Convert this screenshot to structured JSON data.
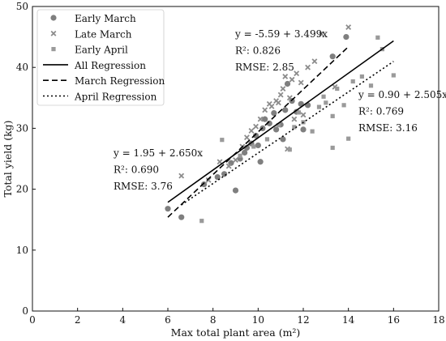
{
  "chart_data": {
    "type": "scatter",
    "xlabel": "Max total plant area (m²)",
    "ylabel": "Total yield (kg)",
    "xlim": [
      0,
      18
    ],
    "ylim": [
      0,
      50
    ],
    "xticks": [
      0,
      2,
      4,
      6,
      8,
      10,
      12,
      14,
      16,
      18
    ],
    "yticks": [
      0,
      10,
      20,
      30,
      40,
      50
    ],
    "grid": false,
    "legend_position": "top-left",
    "series": [
      {
        "name": "Early March",
        "marker": "circle",
        "color": "#7f7f7f",
        "points": [
          [
            6.0,
            16.8
          ],
          [
            6.6,
            15.4
          ],
          [
            7.6,
            20.8
          ],
          [
            8.2,
            22.0
          ],
          [
            8.5,
            22.5
          ],
          [
            8.8,
            24.3
          ],
          [
            9.0,
            19.8
          ],
          [
            9.2,
            25.0
          ],
          [
            9.4,
            26.0
          ],
          [
            9.7,
            27.5
          ],
          [
            9.9,
            28.8
          ],
          [
            10.0,
            27.2
          ],
          [
            10.2,
            30.0
          ],
          [
            10.3,
            31.5
          ],
          [
            10.5,
            30.8
          ],
          [
            10.7,
            32.5
          ],
          [
            10.8,
            29.8
          ],
          [
            11.0,
            30.6
          ],
          [
            11.2,
            33.0
          ],
          [
            11.3,
            37.3
          ],
          [
            11.5,
            34.5
          ],
          [
            11.7,
            32.7
          ],
          [
            11.9,
            34.0
          ],
          [
            12.0,
            29.8
          ],
          [
            12.2,
            33.8
          ],
          [
            11.1,
            28.2
          ],
          [
            9.5,
            26.8
          ],
          [
            10.1,
            24.5
          ],
          [
            13.3,
            41.8
          ],
          [
            13.9,
            45.0
          ]
        ]
      },
      {
        "name": "Late March",
        "marker": "x",
        "color": "#8c8c8c",
        "points": [
          [
            6.6,
            22.2
          ],
          [
            7.8,
            21.5
          ],
          [
            8.3,
            24.5
          ],
          [
            8.7,
            23.8
          ],
          [
            9.0,
            24.8
          ],
          [
            9.3,
            27.0
          ],
          [
            9.5,
            28.5
          ],
          [
            9.7,
            29.6
          ],
          [
            9.9,
            30.3
          ],
          [
            10.1,
            31.5
          ],
          [
            10.3,
            33.0
          ],
          [
            10.5,
            34.0
          ],
          [
            10.6,
            33.6
          ],
          [
            10.8,
            34.5
          ],
          [
            11.0,
            35.5
          ],
          [
            11.1,
            36.5
          ],
          [
            11.2,
            38.5
          ],
          [
            11.4,
            35.0
          ],
          [
            11.5,
            38.0
          ],
          [
            11.7,
            39.0
          ],
          [
            11.9,
            37.5
          ],
          [
            12.2,
            40.0
          ],
          [
            12.5,
            41.0
          ],
          [
            12.8,
            45.5
          ],
          [
            14.0,
            46.6
          ],
          [
            13.4,
            36.8
          ],
          [
            10.9,
            34.2
          ],
          [
            11.6,
            31.5
          ],
          [
            12.0,
            32.2
          ],
          [
            11.3,
            26.6
          ]
        ]
      },
      {
        "name": "Early April",
        "marker": "square",
        "color": "#9a9a9a",
        "points": [
          [
            7.5,
            14.8
          ],
          [
            8.4,
            28.1
          ],
          [
            9.2,
            25.5
          ],
          [
            9.8,
            27.0
          ],
          [
            10.4,
            28.2
          ],
          [
            10.9,
            30.5
          ],
          [
            11.4,
            26.5
          ],
          [
            11.6,
            30.2
          ],
          [
            12.0,
            31.0
          ],
          [
            12.4,
            29.5
          ],
          [
            12.7,
            33.5
          ],
          [
            13.0,
            34.2
          ],
          [
            13.3,
            32.0
          ],
          [
            13.5,
            36.5
          ],
          [
            13.8,
            33.8
          ],
          [
            14.0,
            28.3
          ],
          [
            14.2,
            37.7
          ],
          [
            14.6,
            38.5
          ],
          [
            15.0,
            37.0
          ],
          [
            15.3,
            44.9
          ],
          [
            15.5,
            43.0
          ],
          [
            16.0,
            38.7
          ],
          [
            13.3,
            26.8
          ],
          [
            11.8,
            32.6
          ],
          [
            12.9,
            35.2
          ]
        ]
      }
    ],
    "regressions": [
      {
        "name": "All Regression",
        "style": "solid",
        "intercept": 1.95,
        "slope": 2.65,
        "x_range": [
          6.0,
          16.0
        ]
      },
      {
        "name": "March Regression",
        "style": "dashed",
        "intercept": -5.59,
        "slope": 3.499,
        "x_range": [
          6.0,
          14.0
        ]
      },
      {
        "name": "April Regression",
        "style": "dotted",
        "intercept": 0.9,
        "slope": 2.505,
        "x_range": [
          6.6,
          16.0
        ]
      }
    ],
    "annotations": [
      {
        "lines": [
          "y = 1.95 + 2.650x",
          "R²: 0.690",
          "RMSE: 3.76"
        ]
      },
      {
        "lines": [
          "y = -5.59 + 3.499x",
          "R²: 0.826",
          "RMSE: 2.85"
        ]
      },
      {
        "lines": [
          "y = 0.90 + 2.505x",
          "R²: 0.769",
          "RMSE: 3.16"
        ]
      }
    ]
  }
}
